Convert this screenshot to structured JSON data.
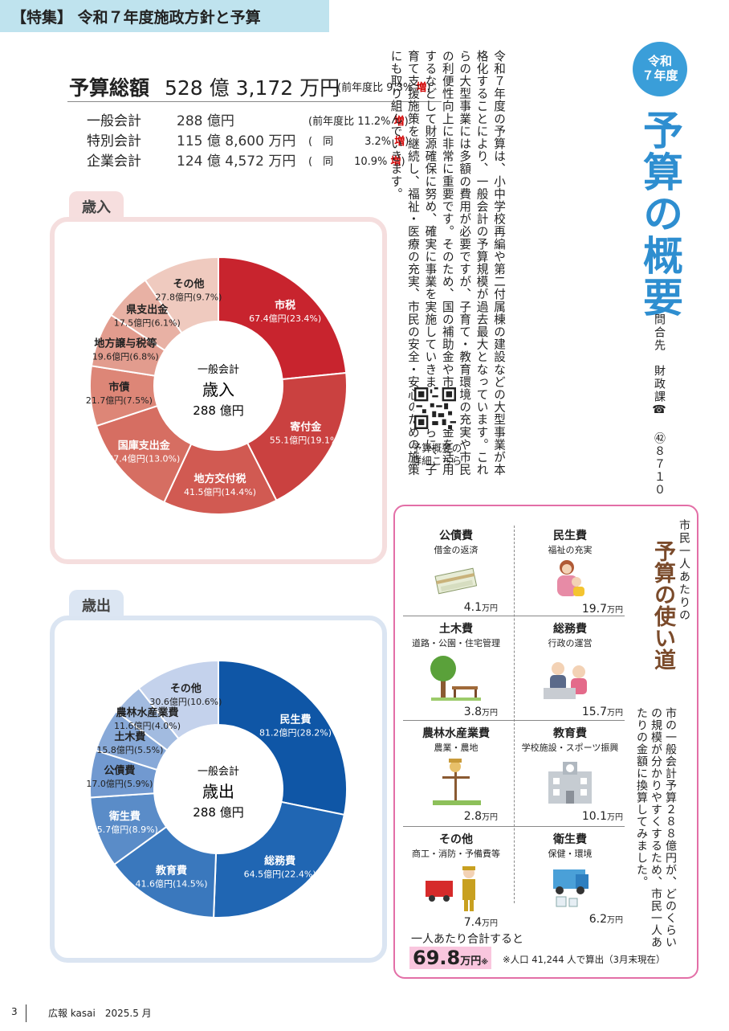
{
  "header": {
    "title": "【特集】 令和７年度施政方針と予算"
  },
  "totals": {
    "title": "予算総額",
    "amount": "528 億 3,172 万円",
    "note_prefix": "(前年度比 9.3% ",
    "note_inc": "増",
    "note_suffix": ")",
    "accounts": [
      {
        "name": "一般会計",
        "value": "288 億円",
        "ratio": "(前年度比 11.2% ",
        "inc": "増",
        "close": ")"
      },
      {
        "name": "特別会計",
        "value": "115 億 8,600 万円",
        "ratio": "(　同　　　3.2% ",
        "inc": "増",
        "close": ")"
      },
      {
        "name": "企業会計",
        "value": "124 億 4,572 万円",
        "ratio": "(　同　　10.9% ",
        "inc": "増",
        "close": ")"
      }
    ]
  },
  "revenue": {
    "tab": "歳入",
    "center_top": "一般会計",
    "center_mid": "歳入",
    "center_bot": "288 億円",
    "items": [
      {
        "name": "市税",
        "value": "67.4億円(23.4%)",
        "color": "#c8242e"
      },
      {
        "name": "寄付金",
        "value": "55.1億円(19.1%)",
        "color": "#ca4140"
      },
      {
        "name": "地方交付税",
        "value": "41.5億円(14.4%)",
        "color": "#d15a52"
      },
      {
        "name": "国庫支出金",
        "value": "37.4億円(13.0%)",
        "color": "#d66e62"
      },
      {
        "name": "市債",
        "value": "21.7億円(7.5%)",
        "color": "#dd8677"
      },
      {
        "name": "地方譲与税等",
        "value": "19.6億円(6.8%)",
        "color": "#e29c8e"
      },
      {
        "name": "県支出金",
        "value": "17.5億円(6.1%)",
        "color": "#e8b1a4"
      },
      {
        "name": "その他",
        "value": "27.8億円(9.7%)",
        "color": "#efcabf"
      }
    ]
  },
  "expenditure": {
    "tab": "歳出",
    "center_top": "一般会計",
    "center_mid": "歳出",
    "center_bot": "288 億円",
    "items": [
      {
        "name": "民生費",
        "value": "81.2億円(28.2%)",
        "color": "#0f56a6"
      },
      {
        "name": "総務費",
        "value": "64.5億円(22.4%)",
        "color": "#2066b3"
      },
      {
        "name": "教育費",
        "value": "41.6億円(14.5%)",
        "color": "#3a78bd"
      },
      {
        "name": "衛生費",
        "value": "25.7億円(8.9%)",
        "color": "#5a8cc8"
      },
      {
        "name": "公債費",
        "value": "17.0億円(5.9%)",
        "color": "#7199d0"
      },
      {
        "name": "土木費",
        "value": "15.8億円(5.5%)",
        "color": "#88a9d8"
      },
      {
        "name": "農林水産業費",
        "value": "11.6億円(4.0%)",
        "color": "#a2bbe0"
      },
      {
        "name": "その他",
        "value": "30.6億円(10.6%)",
        "color": "#c4d2ec"
      }
    ]
  },
  "article": {
    "badge": "令和\n７年度",
    "title": "予算の概要",
    "contact": "問合先　財政課☎ ㊷８７１０",
    "body": "令和７年度の予算は、小中学校再編や第二付属棟の建設などの大型事業が本格化することにより、一般会計の予算規模が過去最大となっています。これらの大型事業には多額の費用が必要ですが、子育て・教育環境の充実や市民の利便性向上に非常に重要です。そのため、国の補助金や市債、基金を活用するなどして財源確保に努め、確実に事業を実施していきます。さらに、子育て支援施策を継続し、福祉・医療の充実、市民の安全・安心のための施策にも取り組んでいきます。",
    "qr_caption": "予算概要の\n詳細こちら"
  },
  "per_capita": {
    "small_title": "市民一人あたりの",
    "big_title": "予算の使い道",
    "desc": "市の一般会計予算２８８億円が、どのくらいの規模が分かりやすくするため、市民一人あたりの金額に換算してみました。",
    "unit": "万円",
    "items": [
      {
        "name": "公債費",
        "sub": "借金の返済",
        "value": "4.1",
        "icon": "money-icon"
      },
      {
        "name": "民生費",
        "sub": "福祉の充実",
        "value": "19.7",
        "icon": "family-icon"
      },
      {
        "name": "土木費",
        "sub": "道路・公園・住宅管理",
        "value": "3.8",
        "icon": "park-icon"
      },
      {
        "name": "総務費",
        "sub": "行政の運営",
        "value": "15.7",
        "icon": "office-icon"
      },
      {
        "name": "農林水産業費",
        "sub": "農業・農地",
        "value": "2.8",
        "icon": "scarecrow-icon"
      },
      {
        "name": "教育費",
        "sub": "学校施設・スポーツ振興",
        "value": "10.1",
        "icon": "school-icon"
      },
      {
        "name": "その他",
        "sub": "商工・消防・予備費等",
        "value": "7.4",
        "icon": "firefighter-icon"
      },
      {
        "name": "衛生費",
        "sub": "保健・環境",
        "value": "6.2",
        "icon": "garbage-truck-icon"
      }
    ],
    "sum_label": "一人あたり合計すると",
    "sum_value": "69.8",
    "sum_unit": "万円",
    "sum_mark": "※",
    "note": "※人口 41,244 人で算出（3月末現在）"
  },
  "footer": {
    "page": "3",
    "pub": "広報 kasai　2025.5 月"
  },
  "chart_data": [
    {
      "type": "pie",
      "title": "歳入",
      "categories": [
        "市税",
        "寄付金",
        "地方交付税",
        "国庫支出金",
        "市債",
        "地方譲与税等",
        "県支出金",
        "その他"
      ],
      "values": [
        67.4,
        55.1,
        41.5,
        37.4,
        21.7,
        19.6,
        17.5,
        27.8
      ]
    },
    {
      "type": "pie",
      "title": "歳出",
      "categories": [
        "民生費",
        "総務費",
        "教育費",
        "衛生費",
        "公債費",
        "土木費",
        "農林水産業費",
        "その他"
      ],
      "values": [
        81.2,
        64.5,
        41.6,
        25.7,
        17.0,
        15.8,
        11.6,
        30.6
      ]
    }
  ]
}
